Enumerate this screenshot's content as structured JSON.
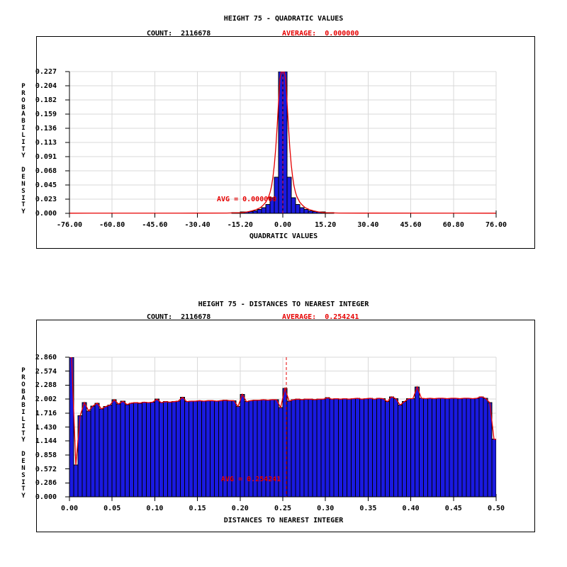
{
  "page": {
    "background": "#ffffff"
  },
  "colors": {
    "bar_fill": "#1a1ae0",
    "bar_outline": "#000000",
    "red": "#e60000",
    "grid": "#d9d9d9",
    "axis": "#000000",
    "text": "#000000"
  },
  "chart_data": [
    {
      "type": "bar",
      "title": "HEIGHT 75 - QUADRATIC VALUES",
      "count": 2116678,
      "average": 0.0,
      "count_label": "COUNT:  2116678",
      "average_label": "AVERAGE:  0.000000",
      "avg_annotation": "AVG = 0.000000",
      "xlabel": "QUADRATIC VALUES",
      "ylabel": "PROBABILITY DENSITY",
      "xlim": [
        -76.0,
        76.0
      ],
      "ylim": [
        0.0,
        0.227
      ],
      "grid": true,
      "legend": "none",
      "x_tick_labels": [
        "-76.00",
        "-60.80",
        "-45.60",
        "-30.40",
        "-15.20",
        "0.00",
        "15.20",
        "30.40",
        "45.60",
        "60.80",
        "76.00"
      ],
      "y_tick_labels": [
        "0.227",
        "0.204",
        "0.182",
        "0.159",
        "0.136",
        "0.113",
        "0.091",
        "0.068",
        "0.045",
        "0.023",
        "0.000"
      ],
      "bin_start": -76.0,
      "bin_width": 1.52,
      "values": [
        0,
        0,
        0,
        0,
        0,
        0,
        0,
        0,
        0,
        0,
        0,
        0,
        0,
        0,
        0,
        0,
        0,
        0,
        0,
        0,
        0,
        0,
        0,
        0,
        0,
        0,
        0,
        0,
        0,
        0,
        0,
        0,
        0,
        0,
        0,
        0,
        0,
        0,
        0.001,
        0.001,
        0.002,
        0.002,
        0.003,
        0.004,
        0.006,
        0.009,
        0.014,
        0.025,
        0.058,
        0.227,
        0.227,
        0.058,
        0.025,
        0.014,
        0.009,
        0.006,
        0.004,
        0.003,
        0.002,
        0.002,
        0.001,
        0.001,
        0,
        0,
        0,
        0,
        0,
        0,
        0,
        0,
        0,
        0,
        0,
        0,
        0,
        0,
        0,
        0,
        0,
        0,
        0,
        0,
        0,
        0,
        0,
        0,
        0,
        0,
        0,
        0,
        0,
        0,
        0,
        0,
        0,
        0,
        0,
        0,
        0,
        0
      ],
      "avg_line_x": 0.0,
      "curve": {
        "x": [
          -76,
          -30,
          -20,
          -15.2,
          -13,
          -11,
          -9.5,
          -8,
          -7,
          -6,
          -5,
          -4.5,
          -4,
          -3.5,
          -3,
          -2.5,
          -2,
          -1.5,
          -1,
          -0.5,
          0,
          0.5,
          1,
          1.5,
          2,
          2.5,
          3,
          3.5,
          4,
          4.5,
          5,
          6,
          7,
          8,
          9.5,
          11,
          13,
          15.2,
          20,
          30,
          76
        ],
        "y": [
          0.0002,
          0.0003,
          0.0005,
          0.001,
          0.002,
          0.004,
          0.006,
          0.009,
          0.013,
          0.018,
          0.027,
          0.034,
          0.044,
          0.058,
          0.078,
          0.105,
          0.14,
          0.18,
          0.215,
          0.235,
          0.24,
          0.235,
          0.215,
          0.18,
          0.14,
          0.105,
          0.078,
          0.058,
          0.044,
          0.034,
          0.027,
          0.018,
          0.013,
          0.009,
          0.006,
          0.004,
          0.002,
          0.001,
          0.0005,
          0.0003,
          0.0002
        ]
      }
    },
    {
      "type": "bar",
      "title": "HEIGHT 75 - DISTANCES TO NEAREST INTEGER",
      "count": 2116678,
      "average": 0.254241,
      "count_label": "COUNT:  2116678",
      "average_label": "AVERAGE:  0.254241",
      "avg_annotation": "AVG = 0.254241",
      "xlabel": "DISTANCES TO NEAREST INTEGER",
      "ylabel": "PROBABILITY DENSITY",
      "xlim": [
        0.0,
        0.5
      ],
      "ylim": [
        0.0,
        2.86
      ],
      "grid": true,
      "legend": "none",
      "x_tick_labels": [
        "0.00",
        "0.05",
        "0.10",
        "0.15",
        "0.20",
        "0.25",
        "0.30",
        "0.35",
        "0.40",
        "0.45",
        "0.50"
      ],
      "y_tick_labels": [
        "2.860",
        "2.574",
        "2.288",
        "2.002",
        "1.716",
        "1.430",
        "1.144",
        "0.858",
        "0.572",
        "0.286",
        "0.000"
      ],
      "bin_start": 0.0,
      "bin_width": 0.005,
      "values": [
        2.86,
        0.65,
        1.66,
        1.93,
        1.76,
        1.86,
        1.92,
        1.8,
        1.85,
        1.88,
        1.99,
        1.9,
        1.96,
        1.89,
        1.92,
        1.93,
        1.92,
        1.94,
        1.93,
        1.94,
        2.0,
        1.93,
        1.95,
        1.94,
        1.95,
        1.96,
        2.04,
        1.95,
        1.96,
        1.96,
        1.97,
        1.96,
        1.97,
        1.97,
        1.96,
        1.97,
        1.98,
        1.97,
        1.97,
        1.85,
        2.1,
        1.95,
        1.97,
        1.98,
        1.98,
        1.99,
        1.98,
        1.99,
        1.99,
        1.83,
        2.22,
        1.96,
        1.99,
        2.0,
        1.99,
        2.0,
        2.0,
        1.99,
        2.0,
        2.0,
        2.03,
        2.0,
        2.01,
        2.0,
        2.01,
        2.0,
        2.01,
        2.02,
        2.0,
        2.01,
        2.02,
        2.0,
        2.02,
        2.01,
        1.95,
        2.05,
        2.01,
        1.88,
        1.95,
        2.01,
        2.01,
        2.25,
        2.02,
        2.01,
        2.02,
        2.01,
        2.02,
        2.02,
        2.01,
        2.02,
        2.02,
        2.01,
        2.02,
        2.02,
        2.01,
        2.02,
        2.05,
        2.02,
        1.93,
        1.18
      ],
      "avg_line_x": 0.254241,
      "curve": "trace-bins"
    }
  ]
}
